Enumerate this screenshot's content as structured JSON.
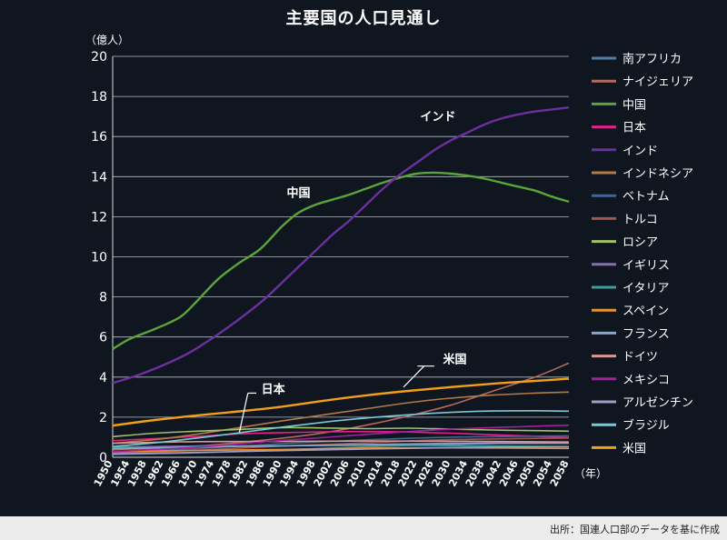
{
  "title": "主要国の人口見通し",
  "source": "出所：国連人口部のデータを基に作成",
  "chart_data": {
    "type": "line",
    "title": "主要国の人口見通し",
    "ylabel": "（億人）",
    "xlabel": "（年）",
    "ylim": [
      0,
      20
    ],
    "yticks": [
      0,
      2,
      4,
      6,
      8,
      10,
      12,
      14,
      16,
      18,
      20
    ],
    "xlim": [
      1950,
      2058
    ],
    "x": [
      1950,
      1954,
      1958,
      1962,
      1966,
      1970,
      1974,
      1978,
      1982,
      1986,
      1990,
      1994,
      1998,
      2002,
      2006,
      2010,
      2014,
      2018,
      2022,
      2026,
      2030,
      2034,
      2038,
      2042,
      2046,
      2050,
      2054,
      2058
    ],
    "grid": true,
    "legend_position": "right",
    "annotations": [
      {
        "text": "インド",
        "x": 2027,
        "y": 16.8
      },
      {
        "text": "中国",
        "x": 1994,
        "y": 13.0
      },
      {
        "text": "米国",
        "x": 2031,
        "y": 4.7
      },
      {
        "text": "日本",
        "x": 1988,
        "y": 3.2
      }
    ],
    "series": [
      {
        "name": "南アフリカ",
        "color": "#4f7fa8",
        "points": [
          [
            1950,
            0.14
          ],
          [
            1970,
            0.22
          ],
          [
            1990,
            0.37
          ],
          [
            2010,
            0.52
          ],
          [
            2030,
            0.65
          ],
          [
            2058,
            0.75
          ]
        ]
      },
      {
        "name": "ナイジェリア",
        "color": "#b56a5e",
        "points": [
          [
            1950,
            0.38
          ],
          [
            1970,
            0.56
          ],
          [
            1990,
            0.95
          ],
          [
            2000,
            1.22
          ],
          [
            2010,
            1.6
          ],
          [
            2020,
            2.06
          ],
          [
            2030,
            2.6
          ],
          [
            2040,
            3.3
          ],
          [
            2050,
            4.0
          ],
          [
            2058,
            4.7
          ]
        ]
      },
      {
        "name": "中国",
        "color": "#5ba43a",
        "points": [
          [
            1950,
            5.4
          ],
          [
            1954,
            5.9
          ],
          [
            1960,
            6.4
          ],
          [
            1966,
            7.0
          ],
          [
            1970,
            7.8
          ],
          [
            1975,
            8.9
          ],
          [
            1980,
            9.7
          ],
          [
            1985,
            10.4
          ],
          [
            1990,
            11.5
          ],
          [
            1994,
            12.2
          ],
          [
            1998,
            12.6
          ],
          [
            2002,
            12.85
          ],
          [
            2006,
            13.1
          ],
          [
            2010,
            13.4
          ],
          [
            2014,
            13.7
          ],
          [
            2018,
            13.95
          ],
          [
            2022,
            14.15
          ],
          [
            2026,
            14.2
          ],
          [
            2030,
            14.15
          ],
          [
            2034,
            14.05
          ],
          [
            2038,
            13.9
          ],
          [
            2042,
            13.7
          ],
          [
            2046,
            13.5
          ],
          [
            2050,
            13.3
          ],
          [
            2054,
            13.0
          ],
          [
            2058,
            12.75
          ]
        ]
      },
      {
        "name": "日本",
        "color": "#e0218a",
        "points": [
          [
            1950,
            0.83
          ],
          [
            1960,
            0.93
          ],
          [
            1970,
            1.04
          ],
          [
            1980,
            1.17
          ],
          [
            1990,
            1.23
          ],
          [
            2000,
            1.27
          ],
          [
            2010,
            1.28
          ],
          [
            2020,
            1.26
          ],
          [
            2030,
            1.2
          ],
          [
            2040,
            1.12
          ],
          [
            2050,
            1.05
          ],
          [
            2058,
            0.98
          ]
        ]
      },
      {
        "name": "インド",
        "color": "#6d2fa0",
        "points": [
          [
            1950,
            3.7
          ],
          [
            1956,
            4.1
          ],
          [
            1962,
            4.6
          ],
          [
            1968,
            5.2
          ],
          [
            1974,
            6.0
          ],
          [
            1980,
            6.9
          ],
          [
            1986,
            7.9
          ],
          [
            1990,
            8.7
          ],
          [
            1994,
            9.5
          ],
          [
            1998,
            10.3
          ],
          [
            2002,
            11.1
          ],
          [
            2006,
            11.8
          ],
          [
            2010,
            12.6
          ],
          [
            2014,
            13.4
          ],
          [
            2018,
            14.1
          ],
          [
            2022,
            14.7
          ],
          [
            2026,
            15.3
          ],
          [
            2030,
            15.8
          ],
          [
            2034,
            16.2
          ],
          [
            2038,
            16.6
          ],
          [
            2042,
            16.9
          ],
          [
            2046,
            17.1
          ],
          [
            2050,
            17.25
          ],
          [
            2054,
            17.35
          ],
          [
            2058,
            17.45
          ]
        ]
      },
      {
        "name": "インドネシア",
        "color": "#b37a47",
        "points": [
          [
            1950,
            0.7
          ],
          [
            1960,
            0.88
          ],
          [
            1970,
            1.15
          ],
          [
            1980,
            1.48
          ],
          [
            1990,
            1.81
          ],
          [
            2000,
            2.12
          ],
          [
            2010,
            2.42
          ],
          [
            2020,
            2.72
          ],
          [
            2030,
            2.95
          ],
          [
            2040,
            3.1
          ],
          [
            2050,
            3.2
          ],
          [
            2058,
            3.25
          ]
        ]
      },
      {
        "name": "ベトナム",
        "color": "#40678f",
        "points": [
          [
            1950,
            0.25
          ],
          [
            1970,
            0.43
          ],
          [
            1990,
            0.68
          ],
          [
            2010,
            0.87
          ],
          [
            2030,
            1.0
          ],
          [
            2058,
            1.07
          ]
        ]
      },
      {
        "name": "トルコ",
        "color": "#a7544c",
        "points": [
          [
            1950,
            0.21
          ],
          [
            1970,
            0.35
          ],
          [
            1990,
            0.56
          ],
          [
            2010,
            0.72
          ],
          [
            2030,
            0.88
          ],
          [
            2058,
            0.96
          ]
        ]
      },
      {
        "name": "ロシア",
        "color": "#9ec36b",
        "points": [
          [
            1950,
            1.03
          ],
          [
            1960,
            1.2
          ],
          [
            1970,
            1.3
          ],
          [
            1980,
            1.39
          ],
          [
            1990,
            1.48
          ],
          [
            2000,
            1.46
          ],
          [
            2010,
            1.43
          ],
          [
            2020,
            1.45
          ],
          [
            2030,
            1.4
          ],
          [
            2040,
            1.36
          ],
          [
            2050,
            1.33
          ],
          [
            2058,
            1.3
          ]
        ]
      },
      {
        "name": "イギリス",
        "color": "#8c6bb6",
        "points": [
          [
            1950,
            0.5
          ],
          [
            1970,
            0.56
          ],
          [
            1990,
            0.57
          ],
          [
            2010,
            0.63
          ],
          [
            2030,
            0.7
          ],
          [
            2058,
            0.74
          ]
        ]
      },
      {
        "name": "イタリア",
        "color": "#3d9c9c",
        "points": [
          [
            1950,
            0.47
          ],
          [
            1970,
            0.54
          ],
          [
            1990,
            0.57
          ],
          [
            2010,
            0.6
          ],
          [
            2030,
            0.58
          ],
          [
            2058,
            0.53
          ]
        ]
      },
      {
        "name": "スペイン",
        "color": "#e8922e",
        "points": [
          [
            1950,
            0.28
          ],
          [
            1970,
            0.34
          ],
          [
            1990,
            0.39
          ],
          [
            2010,
            0.46
          ],
          [
            2030,
            0.47
          ],
          [
            2058,
            0.44
          ]
        ]
      },
      {
        "name": "フランス",
        "color": "#87a7cc",
        "points": [
          [
            1950,
            0.42
          ],
          [
            1970,
            0.51
          ],
          [
            1990,
            0.57
          ],
          [
            2010,
            0.63
          ],
          [
            2030,
            0.68
          ],
          [
            2058,
            0.7
          ]
        ]
      },
      {
        "name": "ドイツ",
        "color": "#d99994",
        "points": [
          [
            1950,
            0.7
          ],
          [
            1970,
            0.78
          ],
          [
            1990,
            0.79
          ],
          [
            2010,
            0.81
          ],
          [
            2030,
            0.8
          ],
          [
            2058,
            0.76
          ]
        ]
      },
      {
        "name": "メキシコ",
        "color": "#a61f9c",
        "points": [
          [
            1950,
            0.28
          ],
          [
            1970,
            0.51
          ],
          [
            1990,
            0.84
          ],
          [
            2010,
            1.14
          ],
          [
            2030,
            1.4
          ],
          [
            2050,
            1.55
          ],
          [
            2058,
            1.6
          ]
        ]
      },
      {
        "name": "アルゼンチン",
        "color": "#a59cc8",
        "points": [
          [
            1950,
            0.17
          ],
          [
            1970,
            0.24
          ],
          [
            1990,
            0.33
          ],
          [
            2010,
            0.41
          ],
          [
            2030,
            0.48
          ],
          [
            2058,
            0.53
          ]
        ]
      },
      {
        "name": "ブラジル",
        "color": "#7ec8d4",
        "points": [
          [
            1950,
            0.54
          ],
          [
            1960,
            0.72
          ],
          [
            1970,
            0.96
          ],
          [
            1980,
            1.22
          ],
          [
            1990,
            1.5
          ],
          [
            2000,
            1.75
          ],
          [
            2010,
            1.96
          ],
          [
            2020,
            2.12
          ],
          [
            2030,
            2.24
          ],
          [
            2040,
            2.31
          ],
          [
            2050,
            2.32
          ],
          [
            2058,
            2.3
          ]
        ]
      },
      {
        "name": "米国",
        "color": "#f2a019",
        "points": [
          [
            1950,
            1.58
          ],
          [
            1960,
            1.86
          ],
          [
            1970,
            2.09
          ],
          [
            1980,
            2.29
          ],
          [
            1990,
            2.52
          ],
          [
            2000,
            2.82
          ],
          [
            2010,
            3.09
          ],
          [
            2020,
            3.31
          ],
          [
            2030,
            3.5
          ],
          [
            2040,
            3.67
          ],
          [
            2050,
            3.81
          ],
          [
            2058,
            3.92
          ]
        ]
      }
    ]
  }
}
